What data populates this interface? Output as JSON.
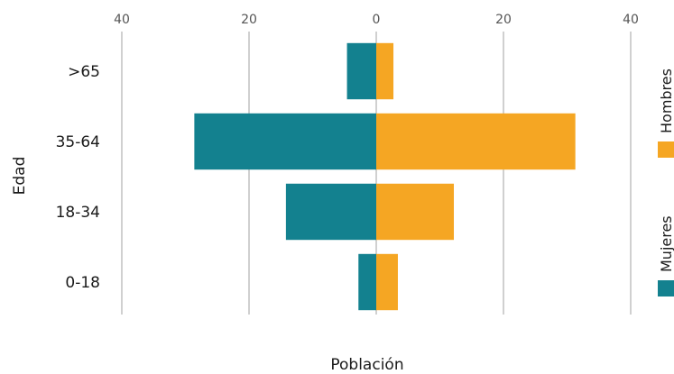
{
  "chart_data": {
    "type": "bar",
    "orientation": "horizontal",
    "layout": "population-pyramid",
    "categories": [
      ">65",
      "35-64",
      "18-34",
      "0-18"
    ],
    "series": [
      {
        "name": "Mujeres",
        "values": [
          4.6,
          28.6,
          14.2,
          2.8
        ],
        "color": "#13818f",
        "side": "left"
      },
      {
        "name": "Hombres",
        "values": [
          2.7,
          31.3,
          12.2,
          3.4
        ],
        "color": "#f5a623",
        "side": "right"
      }
    ],
    "xlabel": "Población",
    "ylabel": "Edad",
    "xlim": [
      -40,
      40
    ],
    "xticks": [
      -40,
      -20,
      0,
      20,
      40
    ],
    "xtick_labels": [
      "40",
      "20",
      "0",
      "20",
      "40"
    ],
    "grid": true,
    "legend_position": "right",
    "legend_order": [
      "Hombres",
      "Mujeres"
    ]
  }
}
